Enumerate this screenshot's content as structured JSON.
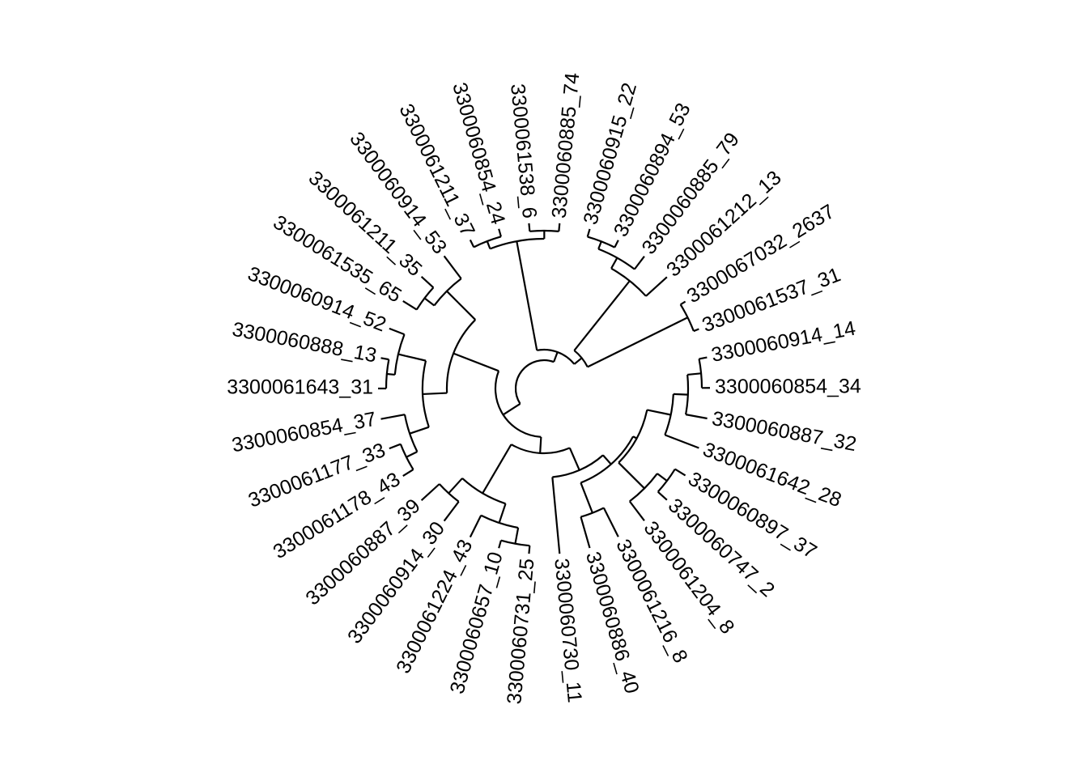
{
  "diagram": {
    "type": "circular-phylogenetic-tree",
    "line_color": "#000000",
    "background": "#ffffff",
    "tips": [
      "3300061537_31",
      "3300067032_2637",
      "3300061212_13",
      "3300060885_79",
      "3300060894_53",
      "3300060915_22",
      "3300060885_74",
      "3300061538_6",
      "3300060854_24",
      "3300061211_37",
      "3300060914_53",
      "3300061211_35",
      "3300061535_65",
      "3300060914_52",
      "3300060888_13",
      "3300061643_31",
      "3300060854_37",
      "3300061177_33",
      "3300061178_43",
      "3300060887_39",
      "3300060914_30",
      "3300061224_43",
      "3300060657_10",
      "3300060731_25",
      "3300060730_11",
      "3300060886_40",
      "3300061216_8",
      "3300061204_8",
      "3300060747_2",
      "3300060897_37",
      "3300061642_28",
      "3300060887_32",
      "3300060854_34",
      "3300060914_14"
    ]
  }
}
